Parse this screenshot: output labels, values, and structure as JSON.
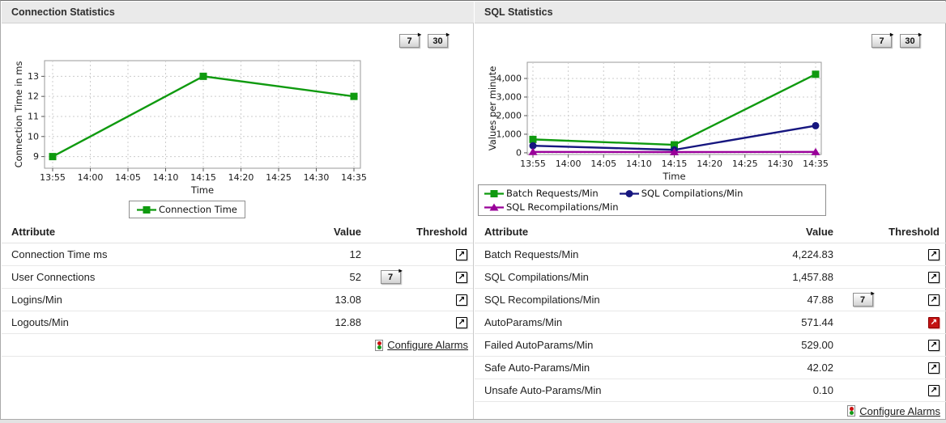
{
  "icons": {
    "threshold_glyph": "↗",
    "button_arrow_glyph": "▸",
    "alarm_icon": "traffic-light-red-green"
  },
  "colors": {
    "alert_red": "#c41212",
    "header_bg": "#eaeaea",
    "series_green": "#0f9a0f",
    "series_navy": "#16167f",
    "series_purple": "#990099"
  },
  "panels": [
    {
      "title": "Connection Statistics",
      "range_buttons": [
        "7",
        "30"
      ],
      "chart_data": {
        "type": "line",
        "x": [
          "13:55",
          "14:00",
          "14:05",
          "14:10",
          "14:15",
          "14:20",
          "14:25",
          "14:30",
          "14:35"
        ],
        "xlabel": "Time",
        "ylabel": "Connection Time in ms",
        "ylim": [
          8.42,
          13.78
        ],
        "yticks": [
          9,
          10,
          11,
          12,
          13
        ],
        "ytick_labels": [
          "9",
          "10",
          "11",
          "12",
          "13"
        ],
        "grid": true,
        "legend_position": "bottom",
        "series": [
          {
            "name": "Connection Time",
            "color": "#0f9a0f",
            "marker": "square",
            "x_indices": [
              0,
              4,
              8
            ],
            "values": [
              9,
              13,
              12
            ]
          }
        ]
      },
      "table": {
        "headers": [
          "Attribute",
          "Value",
          "Threshold"
        ],
        "rows": [
          {
            "attribute": "Connection Time ms",
            "value": "12",
            "range_button": "",
            "threshold_state": "normal"
          },
          {
            "attribute": "User Connections",
            "value": "52",
            "range_button": "7",
            "threshold_state": "normal"
          },
          {
            "attribute": "Logins/Min",
            "value": "13.08",
            "range_button": "",
            "threshold_state": "normal"
          },
          {
            "attribute": "Logouts/Min",
            "value": "12.88",
            "range_button": "",
            "threshold_state": "normal"
          }
        ],
        "footer_link": "Configure Alarms"
      }
    },
    {
      "title": "SQL Statistics",
      "range_buttons": [
        "7",
        "30"
      ],
      "chart_data": {
        "type": "line",
        "x": [
          "13:55",
          "14:00",
          "14:05",
          "14:10",
          "14:15",
          "14:20",
          "14:25",
          "14:30",
          "14:35"
        ],
        "xlabel": "Time",
        "ylabel": "Values per minute",
        "ylim": [
          -90,
          4870
        ],
        "yticks": [
          0,
          1000,
          2000,
          3000,
          4000
        ],
        "ytick_labels": [
          "0",
          "1,000",
          "2,000",
          "3,000",
          "4,000"
        ],
        "grid": true,
        "legend_position": "bottom",
        "series": [
          {
            "name": "Batch Requests/Min",
            "color": "#0f9a0f",
            "marker": "square",
            "x_indices": [
              0,
              4,
              8
            ],
            "values": [
              720,
              430,
              4224.83
            ]
          },
          {
            "name": "SQL Compilations/Min",
            "color": "#16167f",
            "marker": "circle",
            "x_indices": [
              0,
              4,
              8
            ],
            "values": [
              380,
              160,
              1457.88
            ]
          },
          {
            "name": "SQL Recompilations/Min",
            "color": "#990099",
            "marker": "triangle",
            "x_indices": [
              0,
              4,
              8
            ],
            "values": [
              50,
              40,
              47.88
            ]
          }
        ]
      },
      "table": {
        "headers": [
          "Attribute",
          "Value",
          "Threshold"
        ],
        "rows": [
          {
            "attribute": "Batch Requests/Min",
            "value": "4,224.83",
            "range_button": "",
            "threshold_state": "normal"
          },
          {
            "attribute": "SQL Compilations/Min",
            "value": "1,457.88",
            "range_button": "",
            "threshold_state": "normal"
          },
          {
            "attribute": "SQL Recompilations/Min",
            "value": "47.88",
            "range_button": "7",
            "threshold_state": "normal"
          },
          {
            "attribute": "AutoParams/Min",
            "value": "571.44",
            "range_button": "",
            "threshold_state": "alert"
          },
          {
            "attribute": "Failed AutoParams/Min",
            "value": "529.00",
            "range_button": "",
            "threshold_state": "normal"
          },
          {
            "attribute": "Safe Auto-Params/Min",
            "value": "42.02",
            "range_button": "",
            "threshold_state": "normal"
          },
          {
            "attribute": "Unsafe Auto-Params/Min",
            "value": "0.10",
            "range_button": "",
            "threshold_state": "normal"
          }
        ],
        "footer_link": "Configure Alarms"
      }
    }
  ]
}
